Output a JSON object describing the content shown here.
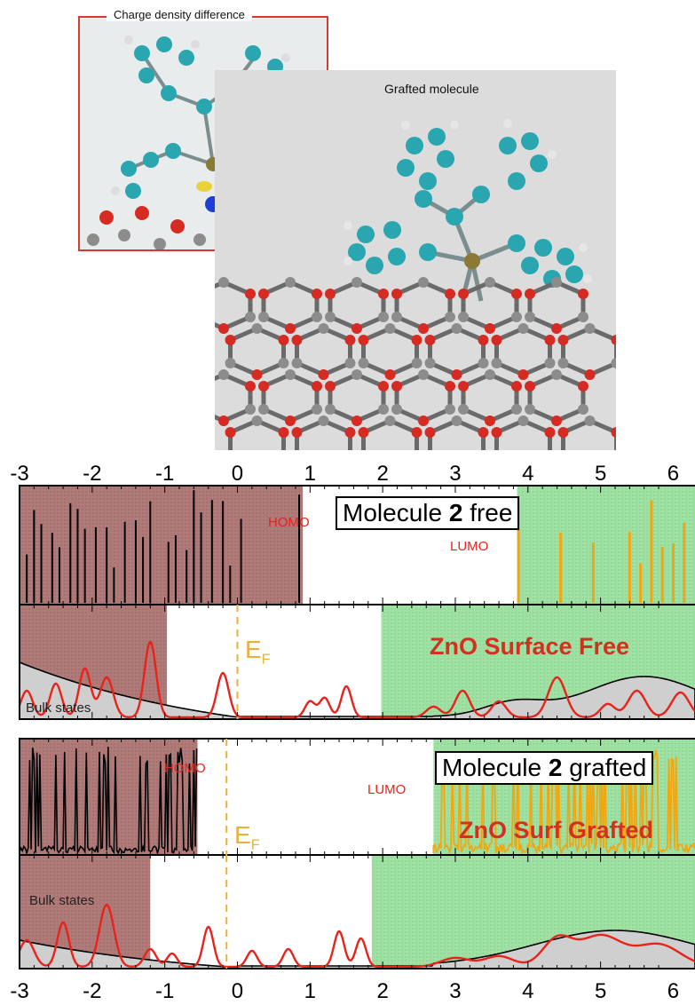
{
  "insets": {
    "charge_title": "Charge density difference",
    "grafted_title": "Grafted molecule"
  },
  "axis": {
    "ticks": [
      "-3",
      "-2",
      "-1",
      "0",
      "1",
      "2",
      "3",
      "4",
      "5",
      "6"
    ]
  },
  "panels": {
    "mol_free": {
      "label_pre": "Molecule ",
      "label_bold": "2",
      "label_post": " free",
      "homo": "HOMO",
      "lumo": "LUMO"
    },
    "surf_free": {
      "title": "ZnO Surface Free",
      "ef": "E",
      "ef_sub": "F",
      "bulk": "Bulk states"
    },
    "mol_grafted": {
      "label_pre": "Molecule ",
      "label_bold": "2",
      "label_post": " grafted",
      "homo": "HOMO",
      "lumo": "LUMO"
    },
    "surf_grafted": {
      "title": "ZnO Surf Grafted",
      "ef": "E",
      "ef_sub": "F",
      "bulk": "Bulk states"
    }
  },
  "colors": {
    "occupied": "#b07a78",
    "unoccupied": "#9fe0a3",
    "red_curve": "#e8231c",
    "orange": "#f0a712",
    "ef_line": "#e8b13a"
  },
  "chart_data": [
    {
      "type": "line",
      "xlim": [
        -3,
        6.3
      ],
      "occupied_range": [
        -3,
        0.9
      ],
      "unoccupied_range": [
        3.85,
        6.3
      ],
      "occupied_peaks": [
        -2.9,
        -2.8,
        -2.7,
        -2.55,
        -2.45,
        -2.3,
        -2.2,
        -2.1,
        -1.95,
        -1.8,
        -1.7,
        -1.55,
        -1.4,
        -1.3,
        -1.2,
        -0.95,
        -0.85,
        -0.7,
        -0.6,
        -0.5,
        -0.35,
        -0.2,
        -0.1,
        0.05,
        0.85
      ],
      "unoccupied_peaks": [
        3.87,
        4.45,
        4.9,
        5.4,
        5.55,
        5.7,
        5.85,
        6.0,
        6.15
      ]
    },
    {
      "type": "line",
      "xlim": [
        -3,
        6.3
      ],
      "ef": 0,
      "occupied_range": [
        -3,
        -0.97
      ],
      "unoccupied_range": [
        1.98,
        6.3
      ]
    },
    {
      "type": "line",
      "xlim": [
        -3,
        6.3
      ],
      "occupied_range": [
        -3,
        -0.55
      ],
      "unoccupied_range": [
        2.7,
        6.3
      ]
    },
    {
      "type": "line",
      "xlim": [
        -3,
        6.3
      ],
      "ef": -0.15,
      "occupied_range": [
        -3,
        -1.2
      ],
      "unoccupied_range": [
        1.85,
        6.3
      ]
    }
  ]
}
